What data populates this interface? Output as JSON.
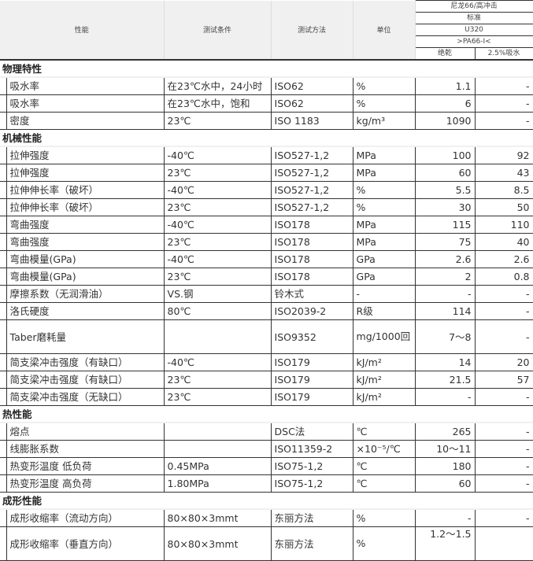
{
  "header": {
    "property": "性能",
    "condition": "测试条件",
    "method": "测试方法",
    "unit": "单位",
    "material": "尼龙66/高冲击",
    "standard": "标准",
    "grade": "U320",
    "code": ">PA66-I<",
    "dry": "绝乾",
    "wet": "2.5%吸水"
  },
  "sections": [
    {
      "title": "物理特性",
      "rows": [
        {
          "property": "吸水率",
          "condition": "在23℃水中，24小时",
          "method": "ISO62",
          "unit": "%",
          "dry": "1.1",
          "wet": "-"
        },
        {
          "property": "吸水率",
          "condition": "在23℃水中，饱和",
          "method": "ISO62",
          "unit": "%",
          "dry": "6",
          "wet": "-"
        },
        {
          "property": "密度",
          "condition": "23℃",
          "method": "ISO 1183",
          "unit": "kg/m³",
          "dry": "1090",
          "wet": "-"
        }
      ]
    },
    {
      "title": "机械性能",
      "rows": [
        {
          "property": "拉伸强度",
          "condition": "-40℃",
          "method": "ISO527-1,2",
          "unit": "MPa",
          "dry": "100",
          "wet": "92"
        },
        {
          "property": "拉伸强度",
          "condition": "23℃",
          "method": "ISO527-1,2",
          "unit": "MPa",
          "dry": "60",
          "wet": "43"
        },
        {
          "property": "拉伸伸长率（破坏）",
          "condition": "-40℃",
          "method": "ISO527-1,2",
          "unit": "%",
          "dry": "5.5",
          "wet": "8.5"
        },
        {
          "property": "拉伸伸长率（破坏）",
          "condition": "23℃",
          "method": "ISO527-1,2",
          "unit": "%",
          "dry": "30",
          "wet": "50"
        },
        {
          "property": "弯曲强度",
          "condition": "-40℃",
          "method": "ISO178",
          "unit": "MPa",
          "dry": "115",
          "wet": "110"
        },
        {
          "property": "弯曲强度",
          "condition": "23℃",
          "method": "ISO178",
          "unit": "MPa",
          "dry": "75",
          "wet": "40"
        },
        {
          "property": "弯曲模量(GPa)",
          "condition": "-40℃",
          "method": "ISO178",
          "unit": "GPa",
          "dry": "2.6",
          "wet": "2.6"
        },
        {
          "property": "弯曲模量(GPa)",
          "condition": "23℃",
          "method": "ISO178",
          "unit": "GPa",
          "dry": "2",
          "wet": "0.8"
        },
        {
          "property": "摩擦系数（无润滑油）",
          "condition": "VS.钢",
          "method": "铃木式",
          "unit": "-",
          "dry": "-",
          "wet": "-"
        },
        {
          "property": "洛氏硬度",
          "condition": "80℃",
          "method": "ISO2039-2",
          "unit": "R级",
          "dry": "114",
          "wet": "-"
        },
        {
          "property": "Taber磨耗量",
          "condition": "",
          "method": "ISO9352",
          "unit": "mg/1000回",
          "dry": "7～8",
          "wet": "-",
          "tall": true
        },
        {
          "property": "简支梁冲击强度（有缺口）",
          "condition": "-40℃",
          "method": "ISO179",
          "unit": "kJ/m²",
          "dry": "14",
          "wet": "20"
        },
        {
          "property": "简支梁冲击强度（有缺口）",
          "condition": "23℃",
          "method": "ISO179",
          "unit": "kJ/m²",
          "dry": "21.5",
          "wet": "57"
        },
        {
          "property": "简支梁冲击强度（无缺口）",
          "condition": "23℃",
          "method": "ISO179",
          "unit": "kJ/m²",
          "dry": "-",
          "wet": "-"
        }
      ]
    },
    {
      "title": "热性能",
      "rows": [
        {
          "property": "熔点",
          "condition": "",
          "method": "DSC法",
          "unit": "℃",
          "dry": "265",
          "wet": "-"
        },
        {
          "property": "线膨胀系数",
          "condition": "",
          "method": "ISO11359-2",
          "unit": "×10⁻⁵/℃",
          "dry": "10～11",
          "wet": "-"
        },
        {
          "property": "热变形温度 低负荷",
          "condition": "0.45MPa",
          "method": "ISO75-1,2",
          "unit": "℃",
          "dry": "180",
          "wet": "-"
        },
        {
          "property": "热变形温度 高负荷",
          "condition": "1.80MPa",
          "method": "ISO75-1,2",
          "unit": "℃",
          "dry": "60",
          "wet": "-"
        }
      ]
    },
    {
      "title": "成形性能",
      "rows": [
        {
          "property": "成形收缩率（流动方向）",
          "condition": "80×80×3mmt",
          "method": "东丽方法",
          "unit": "%",
          "dry": "-",
          "wet": "-"
        },
        {
          "property": "成形收缩率（垂直方向）",
          "condition": "80×80×3mmt",
          "method": "东丽方法",
          "unit": "%",
          "dry": "1.2～1.5",
          "wet": "",
          "tall": true,
          "dryTop": true
        }
      ]
    }
  ]
}
